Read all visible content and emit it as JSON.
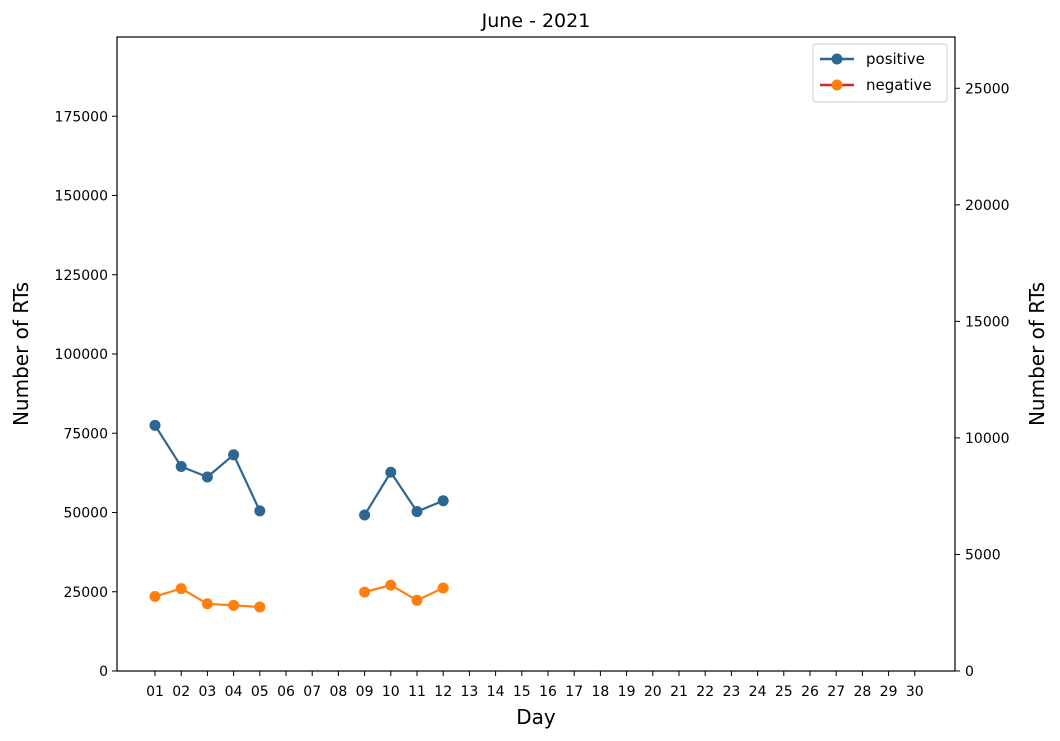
{
  "chart_data": {
    "type": "line",
    "title": "June - 2021",
    "xlabel": "Day",
    "ylabel_left": "Number of RTs",
    "ylabel_right": "Number of RTs",
    "categories": [
      "01",
      "02",
      "03",
      "04",
      "05",
      "06",
      "07",
      "08",
      "09",
      "10",
      "11",
      "12",
      "13",
      "14",
      "15",
      "16",
      "17",
      "18",
      "19",
      "20",
      "21",
      "22",
      "23",
      "24",
      "25",
      "26",
      "27",
      "28",
      "29",
      "30"
    ],
    "y_left": {
      "lim": [
        0,
        200000
      ],
      "ticks": [
        0,
        25000,
        50000,
        75000,
        100000,
        125000,
        150000,
        175000
      ]
    },
    "y_right": {
      "lim": [
        0,
        27200
      ],
      "ticks": [
        0,
        5000,
        10000,
        15000,
        20000,
        25000
      ]
    },
    "series": [
      {
        "name": "positive",
        "axis": "left",
        "color": "#2d6691",
        "values": [
          77500,
          64500,
          61200,
          68200,
          50500,
          null,
          null,
          null,
          49200,
          62700,
          50300,
          53700,
          null,
          null,
          null,
          null,
          null,
          null,
          null,
          null,
          null,
          null,
          null,
          null,
          null,
          null,
          null,
          null,
          null,
          null
        ]
      },
      {
        "name": "negative",
        "axis": "left",
        "color": "#ff7f0e",
        "values": [
          23500,
          26000,
          21200,
          20700,
          20200,
          null,
          null,
          null,
          24900,
          27100,
          22300,
          26200,
          null,
          null,
          null,
          null,
          null,
          null,
          null,
          null,
          null,
          null,
          null,
          null,
          null,
          null,
          null,
          null,
          null,
          null
        ]
      }
    ],
    "legend": {
      "position": "top-right",
      "entries": [
        "positive",
        "negative"
      ],
      "marker_colors": [
        "#2d6691",
        "#ff7f0e"
      ],
      "line_colors": [
        "#2d6691",
        "#d62728"
      ]
    },
    "grid": false
  }
}
